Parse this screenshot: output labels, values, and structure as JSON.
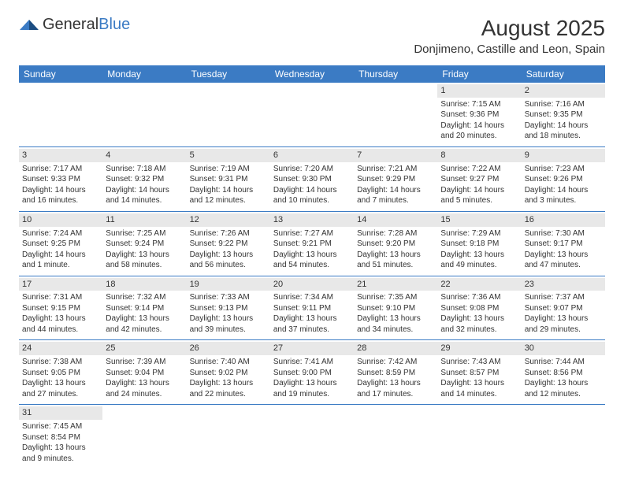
{
  "logo": {
    "part1": "General",
    "part2": "Blue"
  },
  "title": "August 2025",
  "location": "Donjimeno, Castille and Leon, Spain",
  "colors": {
    "header_bg": "#3b7bc4",
    "day_bg": "#e8e8e8",
    "text": "#333333",
    "border": "#3b7bc4"
  },
  "weekdays": [
    "Sunday",
    "Monday",
    "Tuesday",
    "Wednesday",
    "Thursday",
    "Friday",
    "Saturday"
  ],
  "weeks": [
    [
      null,
      null,
      null,
      null,
      null,
      {
        "n": "1",
        "sr": "Sunrise: 7:15 AM",
        "ss": "Sunset: 9:36 PM",
        "d1": "Daylight: 14 hours",
        "d2": "and 20 minutes."
      },
      {
        "n": "2",
        "sr": "Sunrise: 7:16 AM",
        "ss": "Sunset: 9:35 PM",
        "d1": "Daylight: 14 hours",
        "d2": "and 18 minutes."
      }
    ],
    [
      {
        "n": "3",
        "sr": "Sunrise: 7:17 AM",
        "ss": "Sunset: 9:33 PM",
        "d1": "Daylight: 14 hours",
        "d2": "and 16 minutes."
      },
      {
        "n": "4",
        "sr": "Sunrise: 7:18 AM",
        "ss": "Sunset: 9:32 PM",
        "d1": "Daylight: 14 hours",
        "d2": "and 14 minutes."
      },
      {
        "n": "5",
        "sr": "Sunrise: 7:19 AM",
        "ss": "Sunset: 9:31 PM",
        "d1": "Daylight: 14 hours",
        "d2": "and 12 minutes."
      },
      {
        "n": "6",
        "sr": "Sunrise: 7:20 AM",
        "ss": "Sunset: 9:30 PM",
        "d1": "Daylight: 14 hours",
        "d2": "and 10 minutes."
      },
      {
        "n": "7",
        "sr": "Sunrise: 7:21 AM",
        "ss": "Sunset: 9:29 PM",
        "d1": "Daylight: 14 hours",
        "d2": "and 7 minutes."
      },
      {
        "n": "8",
        "sr": "Sunrise: 7:22 AM",
        "ss": "Sunset: 9:27 PM",
        "d1": "Daylight: 14 hours",
        "d2": "and 5 minutes."
      },
      {
        "n": "9",
        "sr": "Sunrise: 7:23 AM",
        "ss": "Sunset: 9:26 PM",
        "d1": "Daylight: 14 hours",
        "d2": "and 3 minutes."
      }
    ],
    [
      {
        "n": "10",
        "sr": "Sunrise: 7:24 AM",
        "ss": "Sunset: 9:25 PM",
        "d1": "Daylight: 14 hours",
        "d2": "and 1 minute."
      },
      {
        "n": "11",
        "sr": "Sunrise: 7:25 AM",
        "ss": "Sunset: 9:24 PM",
        "d1": "Daylight: 13 hours",
        "d2": "and 58 minutes."
      },
      {
        "n": "12",
        "sr": "Sunrise: 7:26 AM",
        "ss": "Sunset: 9:22 PM",
        "d1": "Daylight: 13 hours",
        "d2": "and 56 minutes."
      },
      {
        "n": "13",
        "sr": "Sunrise: 7:27 AM",
        "ss": "Sunset: 9:21 PM",
        "d1": "Daylight: 13 hours",
        "d2": "and 54 minutes."
      },
      {
        "n": "14",
        "sr": "Sunrise: 7:28 AM",
        "ss": "Sunset: 9:20 PM",
        "d1": "Daylight: 13 hours",
        "d2": "and 51 minutes."
      },
      {
        "n": "15",
        "sr": "Sunrise: 7:29 AM",
        "ss": "Sunset: 9:18 PM",
        "d1": "Daylight: 13 hours",
        "d2": "and 49 minutes."
      },
      {
        "n": "16",
        "sr": "Sunrise: 7:30 AM",
        "ss": "Sunset: 9:17 PM",
        "d1": "Daylight: 13 hours",
        "d2": "and 47 minutes."
      }
    ],
    [
      {
        "n": "17",
        "sr": "Sunrise: 7:31 AM",
        "ss": "Sunset: 9:15 PM",
        "d1": "Daylight: 13 hours",
        "d2": "and 44 minutes."
      },
      {
        "n": "18",
        "sr": "Sunrise: 7:32 AM",
        "ss": "Sunset: 9:14 PM",
        "d1": "Daylight: 13 hours",
        "d2": "and 42 minutes."
      },
      {
        "n": "19",
        "sr": "Sunrise: 7:33 AM",
        "ss": "Sunset: 9:13 PM",
        "d1": "Daylight: 13 hours",
        "d2": "and 39 minutes."
      },
      {
        "n": "20",
        "sr": "Sunrise: 7:34 AM",
        "ss": "Sunset: 9:11 PM",
        "d1": "Daylight: 13 hours",
        "d2": "and 37 minutes."
      },
      {
        "n": "21",
        "sr": "Sunrise: 7:35 AM",
        "ss": "Sunset: 9:10 PM",
        "d1": "Daylight: 13 hours",
        "d2": "and 34 minutes."
      },
      {
        "n": "22",
        "sr": "Sunrise: 7:36 AM",
        "ss": "Sunset: 9:08 PM",
        "d1": "Daylight: 13 hours",
        "d2": "and 32 minutes."
      },
      {
        "n": "23",
        "sr": "Sunrise: 7:37 AM",
        "ss": "Sunset: 9:07 PM",
        "d1": "Daylight: 13 hours",
        "d2": "and 29 minutes."
      }
    ],
    [
      {
        "n": "24",
        "sr": "Sunrise: 7:38 AM",
        "ss": "Sunset: 9:05 PM",
        "d1": "Daylight: 13 hours",
        "d2": "and 27 minutes."
      },
      {
        "n": "25",
        "sr": "Sunrise: 7:39 AM",
        "ss": "Sunset: 9:04 PM",
        "d1": "Daylight: 13 hours",
        "d2": "and 24 minutes."
      },
      {
        "n": "26",
        "sr": "Sunrise: 7:40 AM",
        "ss": "Sunset: 9:02 PM",
        "d1": "Daylight: 13 hours",
        "d2": "and 22 minutes."
      },
      {
        "n": "27",
        "sr": "Sunrise: 7:41 AM",
        "ss": "Sunset: 9:00 PM",
        "d1": "Daylight: 13 hours",
        "d2": "and 19 minutes."
      },
      {
        "n": "28",
        "sr": "Sunrise: 7:42 AM",
        "ss": "Sunset: 8:59 PM",
        "d1": "Daylight: 13 hours",
        "d2": "and 17 minutes."
      },
      {
        "n": "29",
        "sr": "Sunrise: 7:43 AM",
        "ss": "Sunset: 8:57 PM",
        "d1": "Daylight: 13 hours",
        "d2": "and 14 minutes."
      },
      {
        "n": "30",
        "sr": "Sunrise: 7:44 AM",
        "ss": "Sunset: 8:56 PM",
        "d1": "Daylight: 13 hours",
        "d2": "and 12 minutes."
      }
    ],
    [
      {
        "n": "31",
        "sr": "Sunrise: 7:45 AM",
        "ss": "Sunset: 8:54 PM",
        "d1": "Daylight: 13 hours",
        "d2": "and 9 minutes."
      },
      null,
      null,
      null,
      null,
      null,
      null
    ]
  ]
}
